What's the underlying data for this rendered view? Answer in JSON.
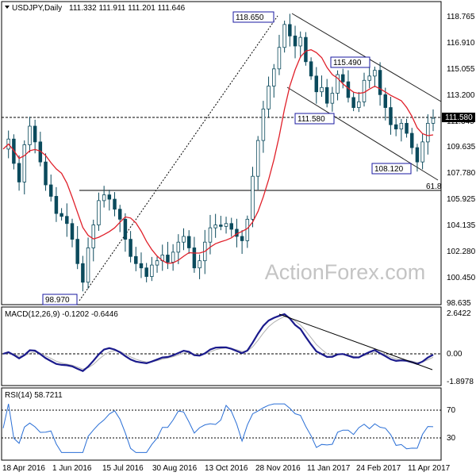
{
  "header": {
    "symbol": "USDJPY,Daily",
    "ohlc": "111.332 111.911 111.201 111.646"
  },
  "watermark": "ActionForex.com",
  "colors": {
    "candle_up": "#ffffff",
    "candle_outline": "#0b4a5c",
    "ma": "#e0202a",
    "trend": "#222222",
    "macd": "#1a1a8c",
    "signal": "#b0b0b0",
    "rsi": "#2a6fd6",
    "label_box": "#1a1aa0"
  },
  "price_axis": {
    "ticks": [
      "118.765",
      "116.910",
      "115.055",
      "113.200",
      "111.345",
      "109.635",
      "107.780",
      "105.925",
      "104.135",
      "102.280",
      "100.450",
      "98.635"
    ],
    "current": "111.580"
  },
  "price_labels": [
    {
      "text": "118.650",
      "price": 118.65
    },
    {
      "text": "115.490",
      "price": 115.49
    },
    {
      "text": "111.580",
      "price": 111.58
    },
    {
      "text": "108.120",
      "price": 108.12
    },
    {
      "text": "98.970",
      "price": 98.97
    }
  ],
  "fib_label": "61.8",
  "macd": {
    "title": "MACD(12,26,9) -0.1202 -0.6446",
    "ticks": [
      "2.6422",
      "0.00",
      "-1.8978"
    ]
  },
  "rsi": {
    "title": "RSI(14) 58.7211",
    "ticks": [
      "70",
      "30"
    ]
  },
  "x_labels": [
    "18 Apr 2016",
    "1 Jun 2016",
    "15 Jul 2016",
    "30 Aug 2016",
    "13 Oct 2016",
    "28 Nov 2016",
    "11 Jan 2017",
    "24 Feb 2017",
    "11 Apr 2017"
  ],
  "chart_data": {
    "type": "line",
    "xlabels": [
      "18 Apr 2016",
      "1 Jun 2016",
      "15 Jul 2016",
      "30 Aug 2016",
      "13 Oct 2016",
      "28 Nov 2016",
      "11 Jan 2017",
      "24 Feb 2017",
      "11 Apr 2017"
    ],
    "ylim": [
      98.635,
      119.8
    ],
    "series": [
      {
        "name": "USDJPY",
        "type": "candlestick",
        "close": [
          109.5,
          110.2,
          108.5,
          107.2,
          109.8,
          111.1,
          110.0,
          108.6,
          107.0,
          106.2,
          105.0,
          104.8,
          104.3,
          103.2,
          101.5,
          100.2,
          102.6,
          104.2,
          105.9,
          106.3,
          106.0,
          105.3,
          104.6,
          103.2,
          102.0,
          101.5,
          101.2,
          100.6,
          101.4,
          101.7,
          102.1,
          101.6,
          102.3,
          103.0,
          103.4,
          102.6,
          101.2,
          101.7,
          103.0,
          104.0,
          104.2,
          104.1,
          104.3,
          103.9,
          103.4,
          103.1,
          104.6,
          107.6,
          110.1,
          112.3,
          113.9,
          115.1,
          116.6,
          118.2,
          117.4,
          116.7,
          117.3,
          115.6,
          114.6,
          113.5,
          113.8,
          112.7,
          113.4,
          114.7,
          114.2,
          113.1,
          112.4,
          112.8,
          114.3,
          114.6,
          115.0,
          113.3,
          112.4,
          111.2,
          110.9,
          111.3,
          110.6,
          109.6,
          108.6,
          110.0,
          111.3,
          111.65
        ]
      },
      {
        "name": "MA",
        "type": "moving-average",
        "color": "#e0202a"
      }
    ],
    "fib_618": 106.4,
    "channel_upper": [
      [
        118.7,
        0.6
      ],
      [
        113.3,
        1.0
      ]
    ],
    "channel_lower": [
      [
        114.4,
        0.6
      ],
      [
        107.6,
        1.0
      ]
    ],
    "macd_range": [
      -1.8978,
      2.6422
    ],
    "rsi_levels": [
      30,
      70
    ]
  }
}
